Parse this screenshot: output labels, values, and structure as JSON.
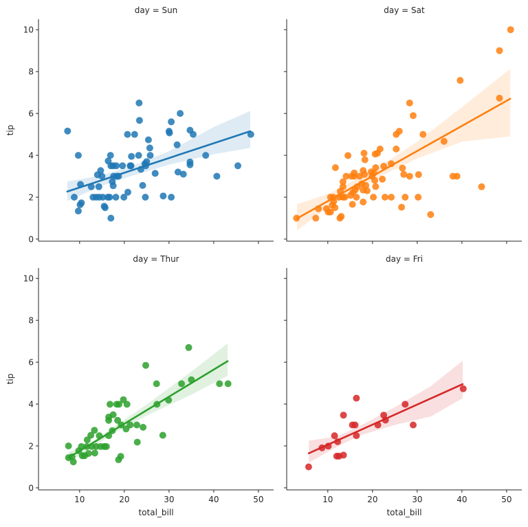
{
  "chart_data": [
    {
      "type": "scatter",
      "title": "day = Sun",
      "xlabel": "",
      "ylabel": "tip",
      "color": "#1f77b4",
      "xlim": [
        0.8,
        53.4
      ],
      "ylim": [
        -0.1,
        10.5
      ],
      "xticks": [
        10,
        20,
        30,
        40,
        50
      ],
      "yticks": [
        0,
        2,
        4,
        6,
        8,
        10
      ],
      "show_xticklabels": false,
      "show_yticklabels": true,
      "points": [
        [
          7.3,
          5.16
        ],
        [
          9.7,
          4.0
        ],
        [
          8.8,
          2.0
        ],
        [
          9.7,
          1.34
        ],
        [
          10.1,
          1.64
        ],
        [
          10.4,
          1.73
        ],
        [
          10.2,
          2.61
        ],
        [
          12.6,
          2.5
        ],
        [
          13.0,
          2.0
        ],
        [
          14.0,
          3.07
        ],
        [
          14.7,
          3.27
        ],
        [
          15.0,
          3.0
        ],
        [
          14.3,
          2.5
        ],
        [
          13.7,
          2.0
        ],
        [
          14.4,
          2.0
        ],
        [
          15.2,
          2.0
        ],
        [
          15.5,
          1.57
        ],
        [
          15.7,
          1.5
        ],
        [
          16.3,
          2.0
        ],
        [
          16.7,
          2.0
        ],
        [
          16.4,
          3.73
        ],
        [
          16.9,
          4.0
        ],
        [
          17.0,
          3.5
        ],
        [
          17.5,
          3.5
        ],
        [
          17.3,
          2.75
        ],
        [
          17.5,
          2.55
        ],
        [
          17.6,
          3.0
        ],
        [
          18.1,
          2.0
        ],
        [
          17.0,
          1.0
        ],
        [
          18.2,
          3.5
        ],
        [
          18.3,
          3.0
        ],
        [
          18.7,
          3.0
        ],
        [
          19.6,
          3.5
        ],
        [
          19.9,
          2.0
        ],
        [
          20.8,
          2.24
        ],
        [
          20.7,
          5.0
        ],
        [
          22.3,
          5.0
        ],
        [
          21.3,
          3.5
        ],
        [
          21.5,
          3.5
        ],
        [
          21.6,
          3.95
        ],
        [
          23.2,
          4.0
        ],
        [
          23.3,
          6.5
        ],
        [
          23.4,
          5.67
        ],
        [
          23.7,
          3.33
        ],
        [
          24.1,
          2.56
        ],
        [
          24.7,
          2.0
        ],
        [
          24.6,
          3.6
        ],
        [
          25.0,
          3.7
        ],
        [
          24.8,
          3.5
        ],
        [
          25.4,
          4.74
        ],
        [
          25.7,
          4.35
        ],
        [
          25.8,
          4.0
        ],
        [
          26.9,
          3.14
        ],
        [
          28.7,
          2.06
        ],
        [
          30.0,
          5.15
        ],
        [
          30.1,
          5.07
        ],
        [
          30.5,
          5.6
        ],
        [
          30.5,
          2.0
        ],
        [
          32.5,
          6.0
        ],
        [
          31.8,
          4.5
        ],
        [
          32.0,
          3.2
        ],
        [
          33.2,
          3.1
        ],
        [
          34.7,
          5.2
        ],
        [
          35.4,
          5.0
        ],
        [
          34.7,
          3.68
        ],
        [
          34.7,
          3.55
        ],
        [
          38.2,
          4.0
        ],
        [
          40.7,
          3.0
        ],
        [
          45.4,
          3.5
        ],
        [
          48.3,
          5.0
        ]
      ],
      "regression_line": [
        [
          7.25,
          2.27
        ],
        [
          48.17,
          5.15
        ]
      ],
      "ci_band": [
        [
          7.25,
          1.82,
          2.75
        ],
        [
          15,
          2.55,
          3.05
        ],
        [
          21.4,
          3.0,
          3.45
        ],
        [
          30,
          3.55,
          4.2
        ],
        [
          40,
          4.05,
          5.35
        ],
        [
          48.17,
          4.35,
          6.12
        ]
      ]
    },
    {
      "type": "scatter",
      "title": "day = Sat",
      "xlabel": "",
      "ylabel": "",
      "color": "#ff7f0e",
      "xlim": [
        0.8,
        53.4
      ],
      "ylim": [
        -0.1,
        10.5
      ],
      "xticks": [
        10,
        20,
        30,
        40,
        50
      ],
      "yticks": [
        0,
        2,
        4,
        6,
        8,
        10
      ],
      "show_xticklabels": false,
      "show_yticklabels": false,
      "points": [
        [
          3.0,
          1.0
        ],
        [
          7.3,
          1.0
        ],
        [
          7.9,
          1.45
        ],
        [
          9.7,
          1.45
        ],
        [
          10.1,
          1.29
        ],
        [
          10.6,
          1.29
        ],
        [
          10.6,
          2.0
        ],
        [
          11.2,
          2.0
        ],
        [
          11.0,
          1.62
        ],
        [
          11.6,
          1.5
        ],
        [
          11.3,
          1.79
        ],
        [
          11.7,
          3.41
        ],
        [
          12.7,
          1.0
        ],
        [
          13.0,
          1.08
        ],
        [
          12.8,
          2.28
        ],
        [
          12.5,
          2.0
        ],
        [
          13.4,
          2.0
        ],
        [
          13.8,
          2.0
        ],
        [
          13.4,
          2.5
        ],
        [
          13.4,
          2.74
        ],
        [
          14.1,
          3.0
        ],
        [
          14.5,
          3.99
        ],
        [
          15.1,
          2.09
        ],
        [
          15.5,
          1.66
        ],
        [
          15.3,
          3.0
        ],
        [
          15.9,
          3.16
        ],
        [
          15.9,
          3.0
        ],
        [
          15.6,
          2.23
        ],
        [
          16.1,
          2.34
        ],
        [
          16.4,
          2.0
        ],
        [
          16.6,
          2.5
        ],
        [
          17.1,
          3.0
        ],
        [
          17.6,
          2.64
        ],
        [
          17.9,
          3.27
        ],
        [
          18.1,
          4.1
        ],
        [
          18.3,
          3.79
        ],
        [
          18.2,
          3.09
        ],
        [
          17.9,
          2.34
        ],
        [
          17.9,
          1.77
        ],
        [
          18.5,
          2.56
        ],
        [
          18.8,
          2.31
        ],
        [
          19.7,
          3.21
        ],
        [
          19.9,
          3.0
        ],
        [
          20.3,
          3.16
        ],
        [
          20.2,
          2.0
        ],
        [
          20.5,
          2.8
        ],
        [
          20.7,
          2.51
        ],
        [
          20.7,
          3.41
        ],
        [
          20.6,
          4.06
        ],
        [
          21.1,
          4.1
        ],
        [
          21.7,
          4.3
        ],
        [
          22.2,
          2.86
        ],
        [
          22.5,
          3.48
        ],
        [
          22.8,
          2.0
        ],
        [
          24.2,
          3.6
        ],
        [
          24.2,
          2.0
        ],
        [
          25.3,
          5.0
        ],
        [
          26.0,
          5.15
        ],
        [
          25.3,
          4.3
        ],
        [
          26.5,
          1.52
        ],
        [
          26.7,
          3.39
        ],
        [
          27.0,
          3.09
        ],
        [
          27.3,
          2.0
        ],
        [
          28.3,
          3.0
        ],
        [
          28.3,
          6.5
        ],
        [
          29.1,
          5.9
        ],
        [
          30.2,
          2.0
        ],
        [
          30.3,
          3.08
        ],
        [
          31.3,
          5.0
        ],
        [
          33.0,
          1.17
        ],
        [
          36.0,
          4.67
        ],
        [
          38.0,
          3.0
        ],
        [
          38.9,
          3.0
        ],
        [
          39.6,
          7.58
        ],
        [
          44.4,
          2.5
        ],
        [
          48.4,
          9.0
        ],
        [
          48.4,
          6.73
        ],
        [
          50.9,
          10.0
        ]
      ],
      "regression_line": [
        [
          3.07,
          0.98
        ],
        [
          50.81,
          6.7
        ]
      ],
      "ci_band": [
        [
          3.07,
          0.41,
          1.66
        ],
        [
          10,
          1.5,
          2.15
        ],
        [
          20.4,
          2.85,
          3.3
        ],
        [
          30,
          3.85,
          4.65
        ],
        [
          40,
          4.65,
          6.3
        ],
        [
          50.81,
          4.9,
          8.13
        ]
      ]
    },
    {
      "type": "scatter",
      "title": "day = Thur",
      "xlabel": "total_bill",
      "ylabel": "tip",
      "color": "#2ca02c",
      "xlim": [
        0.8,
        53.4
      ],
      "ylim": [
        -0.1,
        10.5
      ],
      "xticks": [
        10,
        20,
        30,
        40,
        50
      ],
      "yticks": [
        0,
        2,
        4,
        6,
        8,
        10
      ],
      "show_xticklabels": true,
      "show_yticklabels": true,
      "points": [
        [
          7.5,
          2.0
        ],
        [
          7.5,
          1.44
        ],
        [
          8.3,
          1.48
        ],
        [
          8.6,
          1.24
        ],
        [
          9.8,
          1.77
        ],
        [
          10.4,
          1.97
        ],
        [
          10.6,
          1.53
        ],
        [
          11.1,
          1.53
        ],
        [
          11.6,
          1.97
        ],
        [
          11.7,
          2.29
        ],
        [
          12.0,
          1.64
        ],
        [
          12.5,
          2.51
        ],
        [
          12.7,
          1.97
        ],
        [
          13.3,
          2.75
        ],
        [
          13.4,
          1.66
        ],
        [
          13.7,
          1.97
        ],
        [
          14.4,
          2.49
        ],
        [
          14.7,
          1.97
        ],
        [
          15.5,
          1.97
        ],
        [
          16.0,
          1.97
        ],
        [
          16.5,
          2.49
        ],
        [
          16.5,
          3.38
        ],
        [
          16.5,
          3.22
        ],
        [
          16.8,
          3.99
        ],
        [
          17.5,
          3.49
        ],
        [
          17.3,
          2.73
        ],
        [
          18.3,
          3.99
        ],
        [
          18.8,
          3.99
        ],
        [
          18.5,
          3.22
        ],
        [
          18.7,
          1.34
        ],
        [
          19.2,
          1.5
        ],
        [
          19.8,
          4.21
        ],
        [
          20.6,
          3.99
        ],
        [
          19.3,
          3.0
        ],
        [
          20.4,
          2.81
        ],
        [
          21.3,
          3.0
        ],
        [
          22.8,
          3.0
        ],
        [
          22.9,
          2.18
        ],
        [
          24.2,
          2.89
        ],
        [
          24.8,
          5.85
        ],
        [
          27.3,
          3.99
        ],
        [
          27.2,
          4.97
        ],
        [
          28.6,
          2.51
        ],
        [
          29.9,
          4.19
        ],
        [
          32.8,
          4.97
        ],
        [
          35.0,
          5.16
        ],
        [
          34.4,
          6.7
        ],
        [
          41.3,
          4.97
        ],
        [
          43.2,
          4.97
        ]
      ],
      "regression_line": [
        [
          7.51,
          1.44
        ],
        [
          43.11,
          6.05
        ]
      ],
      "ci_band": [
        [
          7.51,
          1.2,
          1.7
        ],
        [
          12,
          1.82,
          2.1
        ],
        [
          17.7,
          2.6,
          2.92
        ],
        [
          25,
          3.45,
          3.98
        ],
        [
          35,
          4.45,
          5.55
        ],
        [
          43.11,
          5.35,
          6.9
        ]
      ]
    },
    {
      "type": "scatter",
      "title": "day = Fri",
      "xlabel": "total_bill",
      "ylabel": "",
      "color": "#d62728",
      "xlim": [
        0.8,
        53.4
      ],
      "ylim": [
        -0.1,
        10.5
      ],
      "xticks": [
        10,
        20,
        30,
        40,
        50
      ],
      "yticks": [
        0,
        2,
        4,
        6,
        8,
        10
      ],
      "show_xticklabels": true,
      "show_yticklabels": false,
      "points": [
        [
          5.7,
          1.0
        ],
        [
          8.7,
          1.91
        ],
        [
          10.1,
          1.99
        ],
        [
          11.5,
          2.49
        ],
        [
          12.2,
          2.2
        ],
        [
          12.0,
          1.51
        ],
        [
          12.5,
          1.51
        ],
        [
          13.5,
          1.56
        ],
        [
          13.5,
          3.47
        ],
        [
          15.5,
          3.0
        ],
        [
          16.1,
          3.0
        ],
        [
          16.4,
          4.28
        ],
        [
          16.4,
          2.49
        ],
        [
          21.2,
          3.0
        ],
        [
          22.5,
          3.47
        ],
        [
          22.9,
          3.23
        ],
        [
          27.3,
          3.99
        ],
        [
          29.1,
          3.0
        ],
        [
          40.3,
          4.73
        ]
      ],
      "regression_line": [
        [
          5.75,
          1.65
        ],
        [
          40.17,
          4.95
        ]
      ],
      "ci_band": [
        [
          5.75,
          1.2,
          2.25
        ],
        [
          12,
          1.95,
          2.45
        ],
        [
          17.15,
          2.5,
          2.95
        ],
        [
          25,
          3.0,
          3.85
        ],
        [
          33,
          3.4,
          4.85
        ],
        [
          40.17,
          4.28,
          6.07
        ]
      ]
    }
  ]
}
